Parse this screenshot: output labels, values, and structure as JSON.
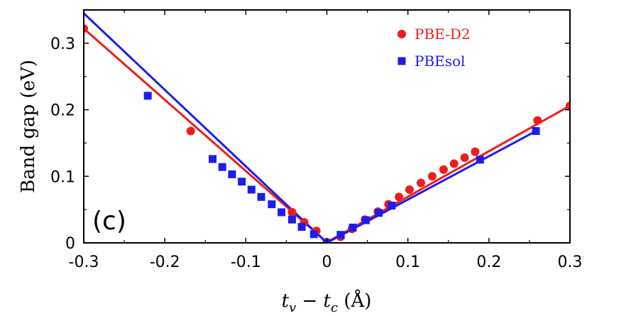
{
  "chart_data": {
    "type": "scatter",
    "title": "",
    "xlabel_parts": [
      "t",
      "v",
      " − ",
      "t",
      "c",
      " (Å)"
    ],
    "ylabel": "Band gap (eV)",
    "panel_label": "(c)",
    "xlim": [
      -0.3,
      0.3
    ],
    "ylim": [
      0,
      0.35
    ],
    "xticks": [
      -0.3,
      -0.2,
      -0.1,
      0,
      0.1,
      0.2,
      0.3
    ],
    "xtick_labels": [
      "-0.3",
      "-0.2",
      "-0.1",
      "0",
      "0.1",
      "0.2",
      "0.3"
    ],
    "yticks": [
      0,
      0.1,
      0.2,
      0.3
    ],
    "ytick_labels": [
      "0",
      "0.1",
      "0.2",
      "0.3"
    ],
    "legend_position": "top-right",
    "series": [
      {
        "name": "PBE-D2",
        "color": "#ee1c1c",
        "marker": "circle",
        "points": [
          [
            -0.3,
            0.322
          ],
          [
            -0.168,
            0.168
          ],
          [
            -0.043,
            0.046
          ],
          [
            -0.028,
            0.031
          ],
          [
            -0.013,
            0.018
          ],
          [
            0.0,
            0.001
          ],
          [
            0.017,
            0.009
          ],
          [
            0.031,
            0.021
          ],
          [
            0.047,
            0.035
          ],
          [
            0.063,
            0.047
          ],
          [
            0.076,
            0.058
          ],
          [
            0.089,
            0.069
          ],
          [
            0.102,
            0.08
          ],
          [
            0.116,
            0.09
          ],
          [
            0.13,
            0.1
          ],
          [
            0.144,
            0.11
          ],
          [
            0.157,
            0.119
          ],
          [
            0.17,
            0.128
          ],
          [
            0.183,
            0.137
          ],
          [
            0.26,
            0.184
          ],
          [
            0.3,
            0.206
          ]
        ],
        "line": [
          [
            -0.3,
            0.322
          ],
          [
            0.0,
            0.001
          ],
          [
            0.3,
            0.206
          ]
        ]
      },
      {
        "name": "PBEsol",
        "color": "#1c1cee",
        "marker": "square",
        "points": [
          [
            -0.221,
            0.221
          ],
          [
            -0.141,
            0.126
          ],
          [
            -0.129,
            0.114
          ],
          [
            -0.117,
            0.103
          ],
          [
            -0.105,
            0.092
          ],
          [
            -0.093,
            0.08
          ],
          [
            -0.081,
            0.069
          ],
          [
            -0.068,
            0.058
          ],
          [
            -0.056,
            0.046
          ],
          [
            -0.043,
            0.035
          ],
          [
            -0.031,
            0.024
          ],
          [
            -0.016,
            0.013
          ],
          [
            0.0,
            0.0
          ],
          [
            0.017,
            0.012
          ],
          [
            0.032,
            0.023
          ],
          [
            0.048,
            0.034
          ],
          [
            0.064,
            0.045
          ],
          [
            0.08,
            0.056
          ],
          [
            0.189,
            0.125
          ],
          [
            0.258,
            0.168
          ]
        ],
        "line": [
          [
            -0.3,
            0.345
          ],
          [
            0.0,
            0.0
          ],
          [
            0.258,
            0.168
          ]
        ]
      }
    ]
  }
}
